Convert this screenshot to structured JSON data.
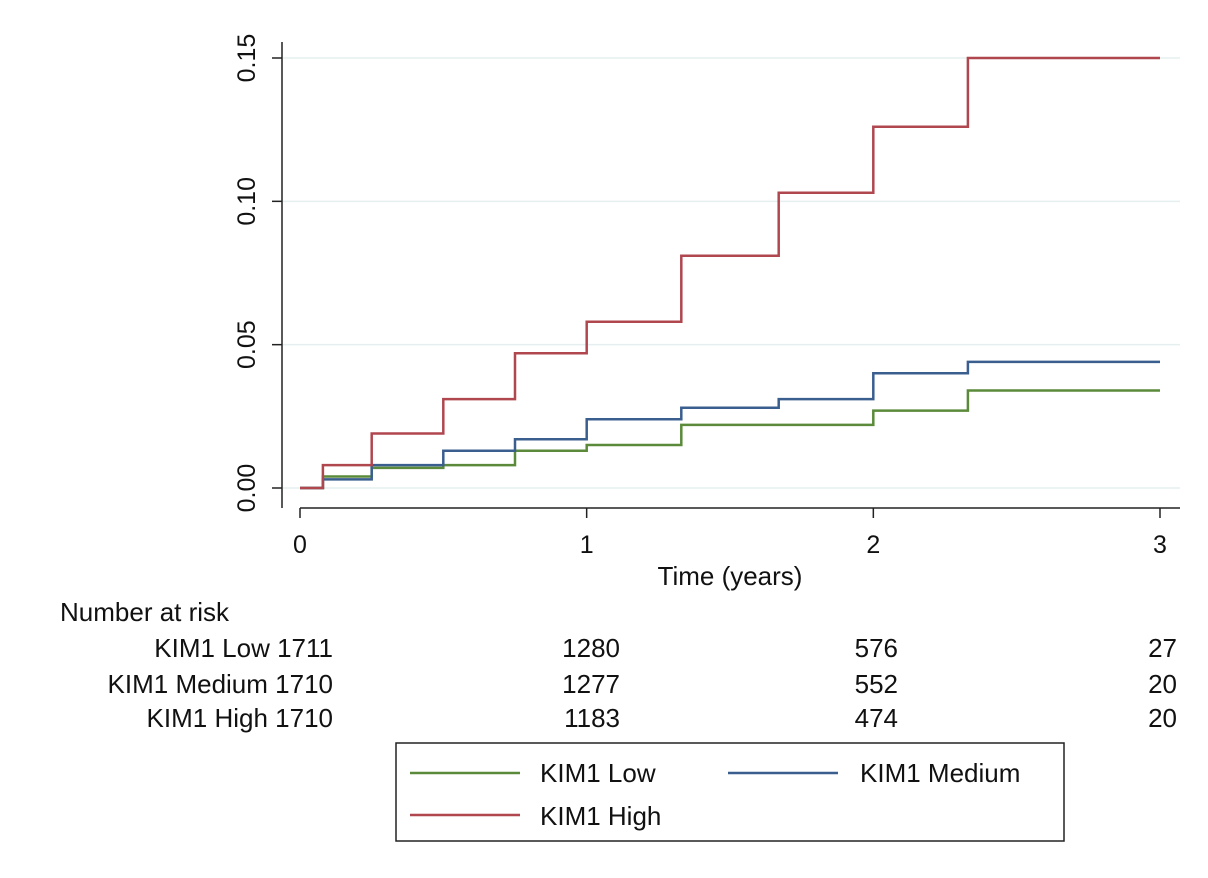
{
  "chart_data": {
    "type": "line",
    "title": "",
    "xlabel": "Time (years)",
    "ylabel": "",
    "xlim": [
      0,
      3
    ],
    "ylim": [
      0,
      0.15
    ],
    "x_ticks": [
      0,
      1,
      2,
      3
    ],
    "x_tick_labels": [
      "0",
      "1",
      "2",
      "3"
    ],
    "y_ticks": [
      0,
      0.05,
      0.1,
      0.15
    ],
    "y_tick_labels": [
      "0.00",
      "0.05",
      "0.10",
      "0.15"
    ],
    "grid": true,
    "step": true,
    "legend_position": "bottom",
    "series": [
      {
        "name": "KIM1 Low",
        "color": "#5a8a3a",
        "points": [
          [
            0,
            0
          ],
          [
            0.08,
            0
          ],
          [
            0.08,
            0.004
          ],
          [
            0.25,
            0.004
          ],
          [
            0.25,
            0.007
          ],
          [
            0.5,
            0.007
          ],
          [
            0.5,
            0.008
          ],
          [
            0.75,
            0.008
          ],
          [
            0.75,
            0.013
          ],
          [
            1.0,
            0.013
          ],
          [
            1.0,
            0.015
          ],
          [
            1.33,
            0.015
          ],
          [
            1.33,
            0.022
          ],
          [
            2.0,
            0.022
          ],
          [
            2.0,
            0.027
          ],
          [
            2.33,
            0.027
          ],
          [
            2.33,
            0.034
          ],
          [
            3.0,
            0.034
          ]
        ]
      },
      {
        "name": "KIM1 Medium",
        "color": "#3a5f8f",
        "points": [
          [
            0,
            0
          ],
          [
            0.08,
            0
          ],
          [
            0.08,
            0.003
          ],
          [
            0.25,
            0.003
          ],
          [
            0.25,
            0.008
          ],
          [
            0.5,
            0.008
          ],
          [
            0.5,
            0.013
          ],
          [
            0.75,
            0.013
          ],
          [
            0.75,
            0.017
          ],
          [
            1.0,
            0.017
          ],
          [
            1.0,
            0.024
          ],
          [
            1.33,
            0.024
          ],
          [
            1.33,
            0.028
          ],
          [
            1.67,
            0.028
          ],
          [
            1.67,
            0.031
          ],
          [
            2.0,
            0.031
          ],
          [
            2.0,
            0.04
          ],
          [
            2.33,
            0.04
          ],
          [
            2.33,
            0.044
          ],
          [
            3.0,
            0.044
          ]
        ]
      },
      {
        "name": "KIM1 High",
        "color": "#b0474f",
        "points": [
          [
            0,
            0
          ],
          [
            0.08,
            0
          ],
          [
            0.08,
            0.008
          ],
          [
            0.25,
            0.008
          ],
          [
            0.25,
            0.019
          ],
          [
            0.5,
            0.019
          ],
          [
            0.5,
            0.031
          ],
          [
            0.75,
            0.031
          ],
          [
            0.75,
            0.047
          ],
          [
            1.0,
            0.047
          ],
          [
            1.0,
            0.058
          ],
          [
            1.33,
            0.058
          ],
          [
            1.33,
            0.081
          ],
          [
            1.67,
            0.081
          ],
          [
            1.67,
            0.103
          ],
          [
            2.0,
            0.103
          ],
          [
            2.0,
            0.126
          ],
          [
            2.33,
            0.126
          ],
          [
            2.33,
            0.15
          ],
          [
            3.0,
            0.15
          ]
        ]
      }
    ],
    "risk_table": {
      "title": "Number at risk",
      "rows": [
        {
          "label": "KIM1 Low",
          "values": [
            "1711",
            "1280",
            "576",
            "27"
          ]
        },
        {
          "label": "KIM1 Medium",
          "values": [
            "1710",
            "1277",
            "552",
            "20"
          ]
        },
        {
          "label": "KIM1 High",
          "values": [
            "1710",
            "1183",
            "474",
            "20"
          ]
        }
      ]
    }
  }
}
